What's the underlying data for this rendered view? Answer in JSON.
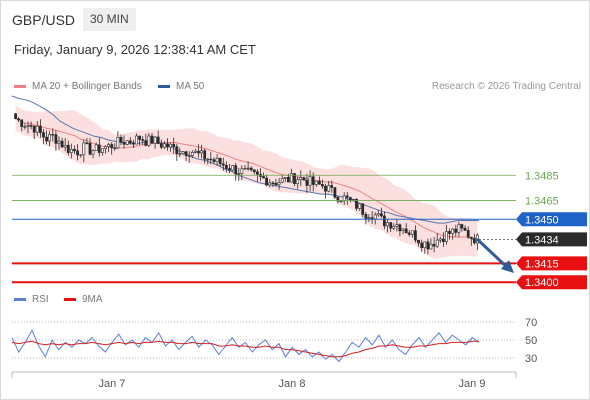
{
  "header": {
    "symbol": "GBP/USD",
    "timeframe": "30 MIN",
    "datetime": "Friday, January 9, 2026 12:38:41 AM CET"
  },
  "legend": {
    "ma20_label": "MA 20 + Bollinger Bands",
    "ma20_color": "#f08080",
    "ma50_label": "MA 50",
    "ma50_color": "#2e5c9a",
    "credit": "Research © 2026 Trading Central"
  },
  "levels": [
    {
      "label": "1.3485",
      "value": 1.3485,
      "kind": "resistance-line",
      "color": "#6aa84f"
    },
    {
      "label": "1.3465",
      "value": 1.3465,
      "kind": "resistance-line",
      "color": "#6aa84f"
    },
    {
      "label": "1.3450",
      "value": 1.345,
      "kind": "pivot",
      "color": "#1e63c8"
    },
    {
      "label": "1.3434",
      "value": 1.3434,
      "kind": "last-price",
      "color": "#2b2b2b"
    },
    {
      "label": "1.3415",
      "value": 1.3415,
      "kind": "target",
      "color": "#e81010"
    },
    {
      "label": "1.3400",
      "value": 1.34,
      "kind": "target",
      "color": "#e81010"
    }
  ],
  "rsi_legend": {
    "rsi_label": "RSI",
    "rsi_color": "#5b7fd6",
    "ma_label": "9MA",
    "ma_color": "#e81010"
  },
  "rsi_ticks": [
    "70",
    "50",
    "30"
  ],
  "x_ticks": [
    "Jan 7",
    "Jan 8",
    "Jan 9"
  ],
  "chart_data": {
    "type": "candlestick",
    "series": [
      {
        "name": "MA 20 + Bollinger Bands"
      },
      {
        "name": "MA 50"
      }
    ],
    "price_range": [
      1.3393,
      1.3548
    ],
    "price_path": [
      1.353,
      1.3527,
      1.3525,
      1.3523,
      1.3518,
      1.3514,
      1.3516,
      1.3512,
      1.3507,
      1.3505,
      1.3504,
      1.3507,
      1.3505,
      1.3505,
      1.3507,
      1.3508,
      1.351,
      1.3512,
      1.3512,
      1.3513,
      1.3515,
      1.3512,
      1.3513,
      1.351,
      1.3509,
      1.3507,
      1.3505,
      1.3504,
      1.3505,
      1.3502,
      1.35,
      1.3498,
      1.3496,
      1.3494,
      1.3492,
      1.349,
      1.3488,
      1.3487,
      1.3485,
      1.3483,
      1.3482,
      1.348,
      1.348,
      1.3481,
      1.3482,
      1.3483,
      1.3482,
      1.348,
      1.3477,
      1.3477,
      1.3475,
      1.347,
      1.3468,
      1.3466,
      1.3463,
      1.346,
      1.3455,
      1.3455,
      1.3452,
      1.3448,
      1.3447,
      1.3446,
      1.3444,
      1.344,
      1.3437,
      1.3432,
      1.343,
      1.3432,
      1.3435,
      1.3438,
      1.344,
      1.3442,
      1.344,
      1.3436,
      1.3434
    ],
    "ma50_path": [
      1.3548,
      1.3546,
      1.3545,
      1.3543,
      1.354,
      1.3537,
      1.3533,
      1.3528,
      1.3525,
      1.3522,
      1.352,
      1.3518,
      1.3516,
      1.3515,
      1.3513,
      1.3512,
      1.3511,
      1.351,
      1.351,
      1.3511,
      1.3512,
      1.3512,
      1.351,
      1.3508,
      1.3505,
      1.3503,
      1.35,
      1.3498,
      1.3497,
      1.3495,
      1.3493,
      1.349,
      1.3488,
      1.3485,
      1.3483,
      1.3481,
      1.3479,
      1.3478,
      1.3477,
      1.3476,
      1.3475,
      1.3474,
      1.3473,
      1.3472,
      1.3471,
      1.347,
      1.347,
      1.3469,
      1.3468,
      1.3466,
      1.3464,
      1.3462,
      1.346,
      1.3458,
      1.3456,
      1.3455,
      1.3453,
      1.3452,
      1.3451,
      1.345,
      1.3449,
      1.3448,
      1.3447,
      1.3447,
      1.3448,
      1.3449,
      1.3449,
      1.3449,
      1.3449
    ],
    "rsi_range": [
      20,
      80
    ],
    "rsi_path": [
      52,
      40,
      48,
      58,
      45,
      36,
      50,
      42,
      48,
      44,
      50,
      47,
      52,
      45,
      40,
      48,
      55,
      46,
      50,
      44,
      52,
      48,
      56,
      45,
      50,
      42,
      48,
      53,
      44,
      50,
      46,
      38,
      45,
      52,
      44,
      48,
      40,
      46,
      50,
      42,
      47,
      36,
      44,
      38,
      42,
      36,
      40,
      34,
      38,
      32,
      40,
      48,
      44,
      52,
      46,
      54,
      44,
      50,
      42,
      38,
      46,
      52,
      44,
      50,
      56,
      48,
      54,
      50,
      46,
      52,
      48
    ],
    "rsi_ma_path": [
      48,
      47,
      48,
      49,
      47,
      46,
      47,
      46,
      47,
      46,
      47,
      47,
      48,
      47,
      46,
      47,
      48,
      47,
      48,
      47,
      48,
      48,
      49,
      48,
      48,
      47,
      47,
      48,
      47,
      47,
      47,
      45,
      45,
      46,
      45,
      45,
      44,
      44,
      45,
      44,
      44,
      42,
      42,
      41,
      40,
      39,
      38,
      37,
      36,
      36,
      37,
      39,
      40,
      42,
      43,
      45,
      45,
      46,
      45,
      44,
      44,
      45,
      45,
      46,
      47,
      47,
      48,
      48,
      48,
      49,
      49
    ]
  }
}
